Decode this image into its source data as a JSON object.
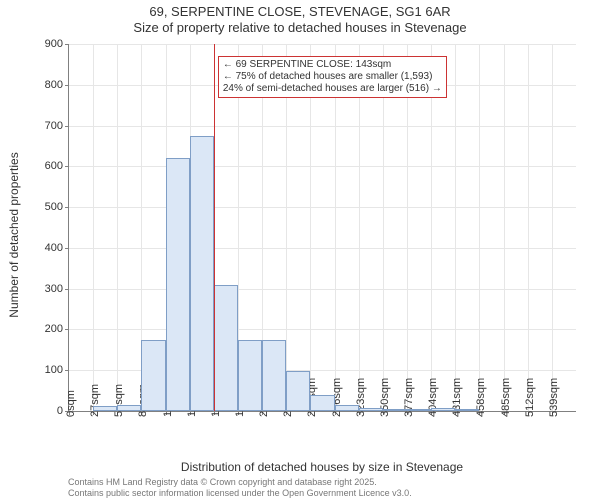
{
  "chart": {
    "type": "histogram",
    "title": "69, SERPENTINE CLOSE, STEVENAGE, SG1 6AR",
    "subtitle": "Size of property relative to detached houses in Stevenage",
    "y_axis": {
      "label": "Number of detached properties",
      "min": 0,
      "max": 900,
      "ticks": [
        0,
        100,
        200,
        300,
        400,
        500,
        600,
        700,
        800,
        900
      ],
      "label_fontsize": 12,
      "tick_fontsize": 11
    },
    "x_axis": {
      "label": "Distribution of detached houses by size in Stevenage",
      "ticks": [
        "0sqm",
        "27sqm",
        "54sqm",
        "81sqm",
        "108sqm",
        "135sqm",
        "162sqm",
        "189sqm",
        "216sqm",
        "243sqm",
        "270sqm",
        "296sqm",
        "323sqm",
        "350sqm",
        "377sqm",
        "404sqm",
        "431sqm",
        "458sqm",
        "485sqm",
        "512sqm",
        "539sqm"
      ],
      "label_fontsize": 12,
      "tick_fontsize": 11
    },
    "bars": {
      "values": [
        0,
        12,
        15,
        175,
        620,
        675,
        310,
        175,
        175,
        98,
        40,
        15,
        8,
        5,
        3,
        8,
        2,
        0,
        0,
        0,
        0
      ],
      "fill_color": "#dbe7f6",
      "border_color": "#7f9ec6"
    },
    "reference_line": {
      "at_tick_index": 6,
      "color": "#cc3333",
      "width": 1
    },
    "callout": {
      "line1": "← 69 SERPENTINE CLOSE: 143sqm",
      "line2": "← 75% of detached houses are smaller (1,593)",
      "line3": "24% of semi-detached houses are larger (516) →",
      "border_color": "#cc3333",
      "fontsize": 10
    },
    "grid_color": "#e6e6e6",
    "background_color": "#ffffff",
    "axis_color": "#808080"
  },
  "footer": {
    "line1": "Contains HM Land Registry data © Crown copyright and database right 2025.",
    "line2": "Contains public sector information licensed under the Open Government Licence v3.0."
  }
}
